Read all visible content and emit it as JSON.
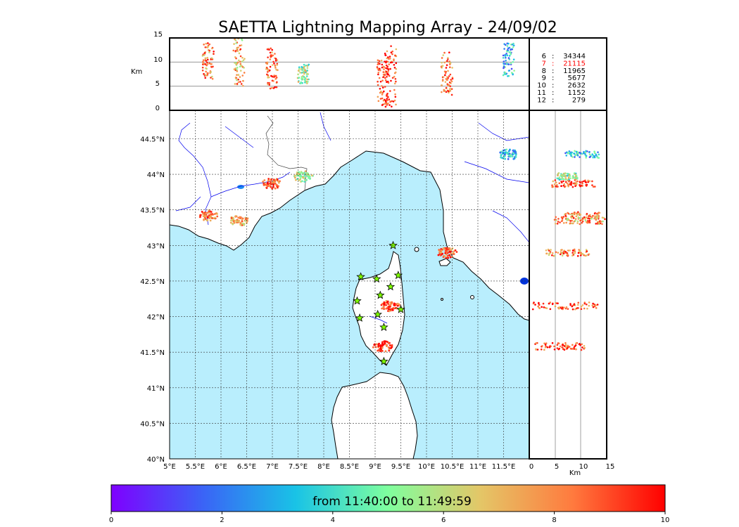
{
  "title": "SAETTA Lightning Mapping Array - 24/09/02",
  "colorbar": {
    "label": "from 11:40:00 to 11:49:59",
    "ticks": [
      "0",
      "2",
      "4",
      "6",
      "8",
      "10"
    ],
    "range": [
      0,
      10
    ],
    "colors": [
      "#7f00ff",
      "#3a64f6",
      "#19c3e6",
      "#7fff9e",
      "#e4c667",
      "#ff7a3e",
      "#ff0000"
    ]
  },
  "map": {
    "lon_ticks": [
      "5°E",
      "5.5°E",
      "6°E",
      "6.5°E",
      "7°E",
      "7.5°E",
      "8°E",
      "8.5°E",
      "9°E",
      "9.5°E",
      "10°E",
      "10.5°E",
      "11°E",
      "11.5°E"
    ],
    "lat_ticks": [
      "40°N",
      "40.5°N",
      "41°N",
      "41.5°N",
      "42°N",
      "42.5°N",
      "43°N",
      "43.5°N",
      "44°N",
      "44.5°N"
    ],
    "lon_range": [
      5,
      12
    ],
    "lat_range": [
      40,
      44.9
    ],
    "sea_color": "#b9eefd",
    "land_color": "#ffffff",
    "river_color": "#0000ee",
    "station_color": "#7fff00",
    "station_count": 12
  },
  "altitude_panel": {
    "unit_label": "Km",
    "ticks": [
      "0",
      "5",
      "10",
      "15"
    ],
    "range": [
      0,
      15
    ]
  },
  "side_panel": {
    "unit_label": "Km",
    "ticks": [
      "0",
      "5",
      "10",
      "15"
    ],
    "range": [
      0,
      15
    ]
  },
  "source_counts": [
    {
      "label": "6",
      "value": "34344",
      "color": "#000000"
    },
    {
      "label": "7",
      "value": "21115",
      "color": "#ff0000"
    },
    {
      "label": "8",
      "value": "11965",
      "color": "#000000"
    },
    {
      "label": "9",
      "value": "5677",
      "color": "#000000"
    },
    {
      "label": "10",
      "value": "2632",
      "color": "#000000"
    },
    {
      "label": "11",
      "value": "1152",
      "color": "#000000"
    },
    {
      "label": "12",
      "value": "279",
      "color": "#000000"
    }
  ],
  "lightning_clusters": [
    {
      "lon": 5.75,
      "lat": 43.42,
      "alt_min": 6.5,
      "alt_max": 14,
      "t": 8.2
    },
    {
      "lon": 6.35,
      "lat": 43.35,
      "alt_min": 5,
      "alt_max": 15,
      "t": 7.5
    },
    {
      "lon": 6.99,
      "lat": 43.87,
      "alt_min": 4.5,
      "alt_max": 13,
      "t": 8.8
    },
    {
      "lon": 7.6,
      "lat": 43.97,
      "alt_min": 5.5,
      "alt_max": 9.5,
      "t": 5.6
    },
    {
      "lon": 9.3,
      "lat": 42.15,
      "alt_min": 0.5,
      "alt_max": 13.5,
      "t": 9.0
    },
    {
      "lon": 9.15,
      "lat": 41.58,
      "alt_min": 1,
      "alt_max": 11,
      "t": 9.2
    },
    {
      "lon": 10.4,
      "lat": 42.9,
      "alt_min": 3,
      "alt_max": 12,
      "t": 8.5
    },
    {
      "lon": 11.6,
      "lat": 44.28,
      "alt_min": 7,
      "alt_max": 14,
      "t": 3.2
    }
  ]
}
